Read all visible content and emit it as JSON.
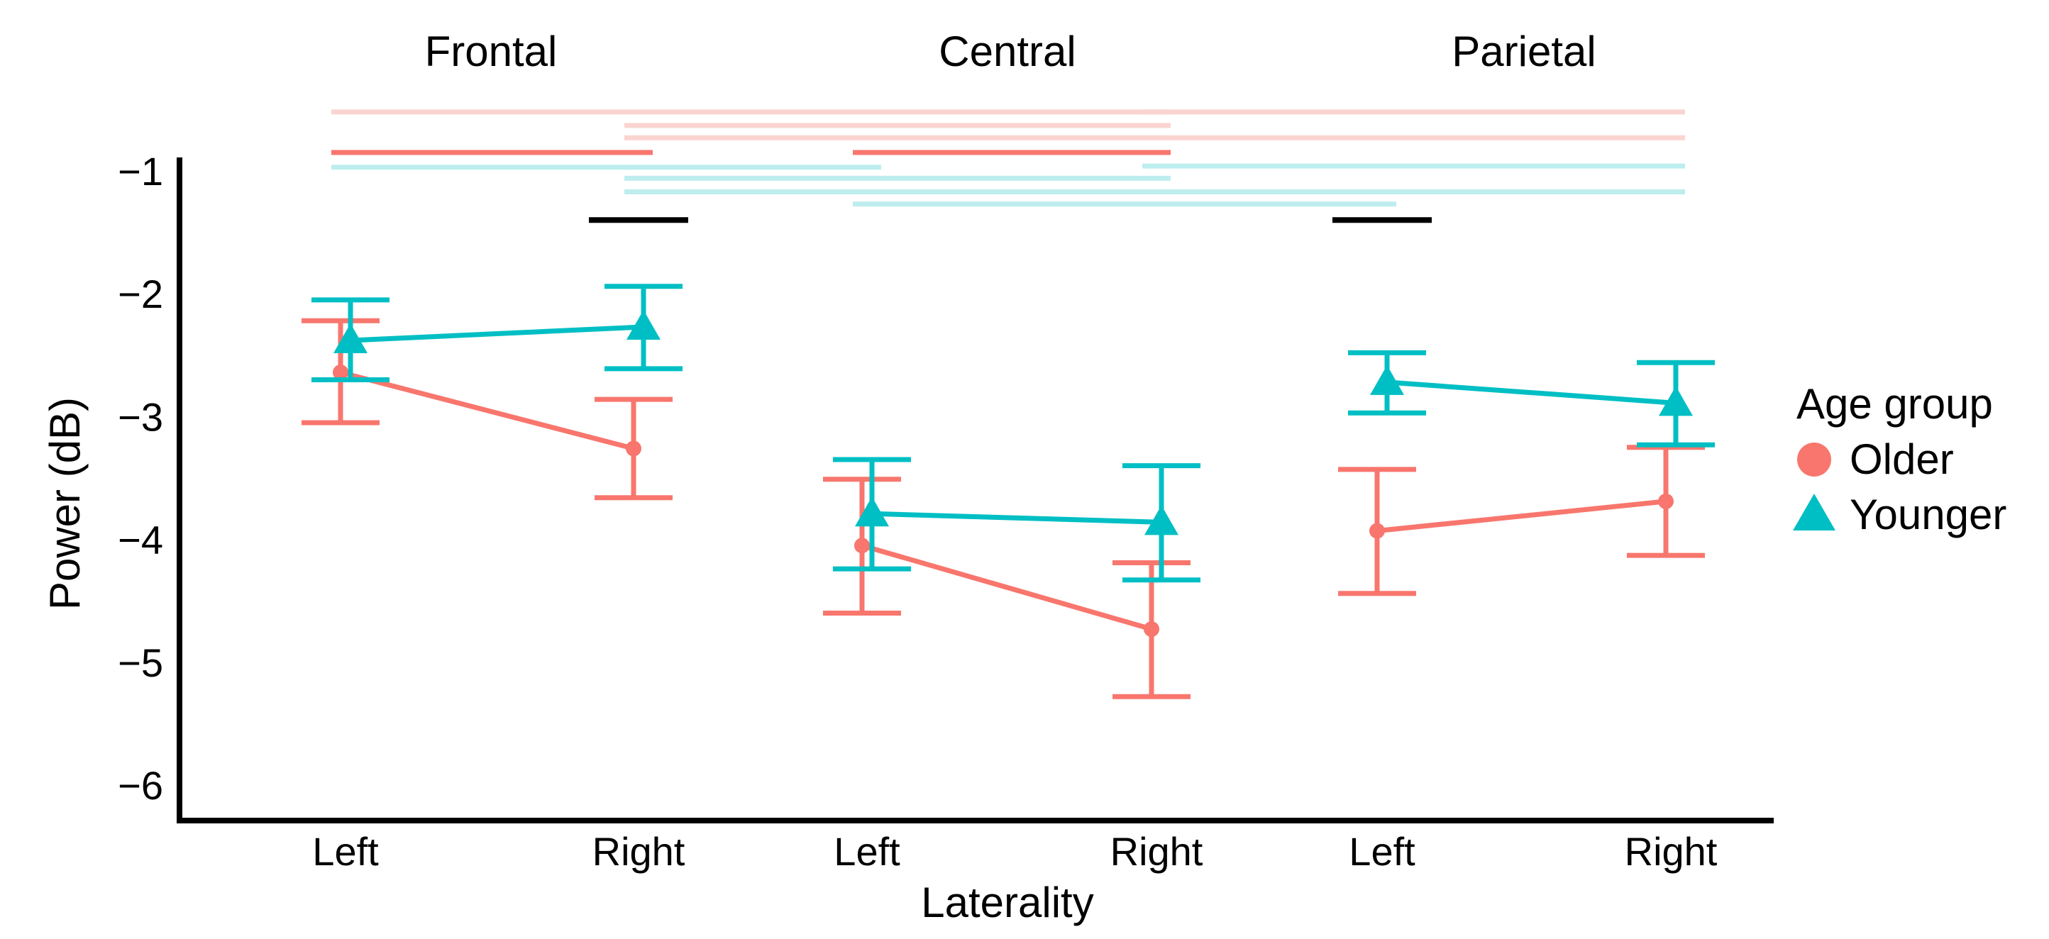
{
  "chart_data": {
    "type": "line",
    "x_axis_title": "Laterality",
    "y_axis_title": "Power (dB)",
    "ylim": [
      -6.3,
      -0.9
    ],
    "y_ticks": [
      {
        "value": -1,
        "label": "−1"
      },
      {
        "value": -2,
        "label": "−2"
      },
      {
        "value": -3,
        "label": "−3"
      },
      {
        "value": -4,
        "label": "−4"
      },
      {
        "value": -5,
        "label": "−5"
      },
      {
        "value": -6,
        "label": "−6"
      }
    ],
    "panels": [
      {
        "title": "Frontal",
        "categories": [
          "Left",
          "Right"
        ]
      },
      {
        "title": "Central",
        "categories": [
          "Left",
          "Right"
        ]
      },
      {
        "title": "Parietal",
        "categories": [
          "Left",
          "Right"
        ]
      }
    ],
    "legend": {
      "title": "Age group"
    },
    "series": [
      {
        "name": "Older",
        "marker": "circle",
        "color": "#F8766D",
        "points": [
          {
            "panel": 0,
            "cat": 0,
            "mean": -2.64,
            "lo": -3.05,
            "hi": -2.22
          },
          {
            "panel": 0,
            "cat": 1,
            "mean": -3.26,
            "lo": -3.66,
            "hi": -2.86
          },
          {
            "panel": 1,
            "cat": 0,
            "mean": -4.05,
            "lo": -4.6,
            "hi": -3.51
          },
          {
            "panel": 1,
            "cat": 1,
            "mean": -4.73,
            "lo": -5.28,
            "hi": -4.19
          },
          {
            "panel": 2,
            "cat": 0,
            "mean": -3.93,
            "lo": -4.44,
            "hi": -3.43
          },
          {
            "panel": 2,
            "cat": 1,
            "mean": -3.69,
            "lo": -4.13,
            "hi": -3.25
          }
        ]
      },
      {
        "name": "Younger",
        "marker": "triangle",
        "color": "#00BFC4",
        "points": [
          {
            "panel": 0,
            "cat": 0,
            "mean": -2.38,
            "lo": -2.7,
            "hi": -2.05
          },
          {
            "panel": 0,
            "cat": 1,
            "mean": -2.27,
            "lo": -2.61,
            "hi": -1.94
          },
          {
            "panel": 1,
            "cat": 0,
            "mean": -3.79,
            "lo": -4.24,
            "hi": -3.35
          },
          {
            "panel": 1,
            "cat": 1,
            "mean": -3.86,
            "lo": -4.33,
            "hi": -3.4
          },
          {
            "panel": 2,
            "cat": 0,
            "mean": -2.72,
            "lo": -2.97,
            "hi": -2.48
          },
          {
            "panel": 2,
            "cat": 1,
            "mean": -2.89,
            "lo": -3.23,
            "hi": -2.56
          }
        ]
      }
    ],
    "significance_bars": [
      {
        "group": "Older",
        "strength": "weak",
        "from": [
          0,
          0
        ],
        "to": [
          1,
          1
        ],
        "value": -0.52
      },
      {
        "group": "Older",
        "strength": "weak",
        "from": [
          1,
          1
        ],
        "to": [
          2,
          1
        ],
        "value": -0.52
      },
      {
        "group": "Older",
        "strength": "weak",
        "from": [
          0,
          1
        ],
        "to": [
          1,
          1
        ],
        "value": -0.63
      },
      {
        "group": "Older",
        "strength": "weak",
        "from": [
          0,
          1
        ],
        "to": [
          2,
          1
        ],
        "value": -0.73
      },
      {
        "group": "Older",
        "strength": "strong",
        "from": [
          0,
          0
        ],
        "to": [
          0,
          1
        ],
        "value": -0.85
      },
      {
        "group": "Older",
        "strength": "strong",
        "from": [
          1,
          0
        ],
        "to": [
          1,
          1
        ],
        "value": -0.85
      },
      {
        "group": "Younger",
        "strength": "weak",
        "from": [
          0,
          0
        ],
        "to": [
          1,
          0
        ],
        "value": -0.97
      },
      {
        "group": "Younger",
        "strength": "weak",
        "from": [
          1,
          1
        ],
        "to": [
          2,
          1
        ],
        "value": -0.96
      },
      {
        "group": "Younger",
        "strength": "weak",
        "from": [
          0,
          1
        ],
        "to": [
          1,
          1
        ],
        "value": -1.06
      },
      {
        "group": "Younger",
        "strength": "weak",
        "from": [
          0,
          1
        ],
        "to": [
          2,
          1
        ],
        "value": -1.17
      },
      {
        "group": "Younger",
        "strength": "weak",
        "from": [
          1,
          0
        ],
        "to": [
          2,
          0
        ],
        "value": -1.27
      },
      {
        "group": "Interaction",
        "strength": "strong",
        "from": [
          0,
          1
        ],
        "to": [
          0,
          1
        ],
        "value": -1.4
      },
      {
        "group": "Interaction",
        "strength": "strong",
        "from": [
          2,
          0
        ],
        "to": [
          2,
          0
        ],
        "value": -1.4
      }
    ],
    "colors": {
      "older": "#F8766D",
      "older_light": "#FAD4D1",
      "younger": "#00BFC4",
      "younger_light": "#BDEDEF",
      "interaction": "#000000",
      "axis": "#000000"
    }
  }
}
